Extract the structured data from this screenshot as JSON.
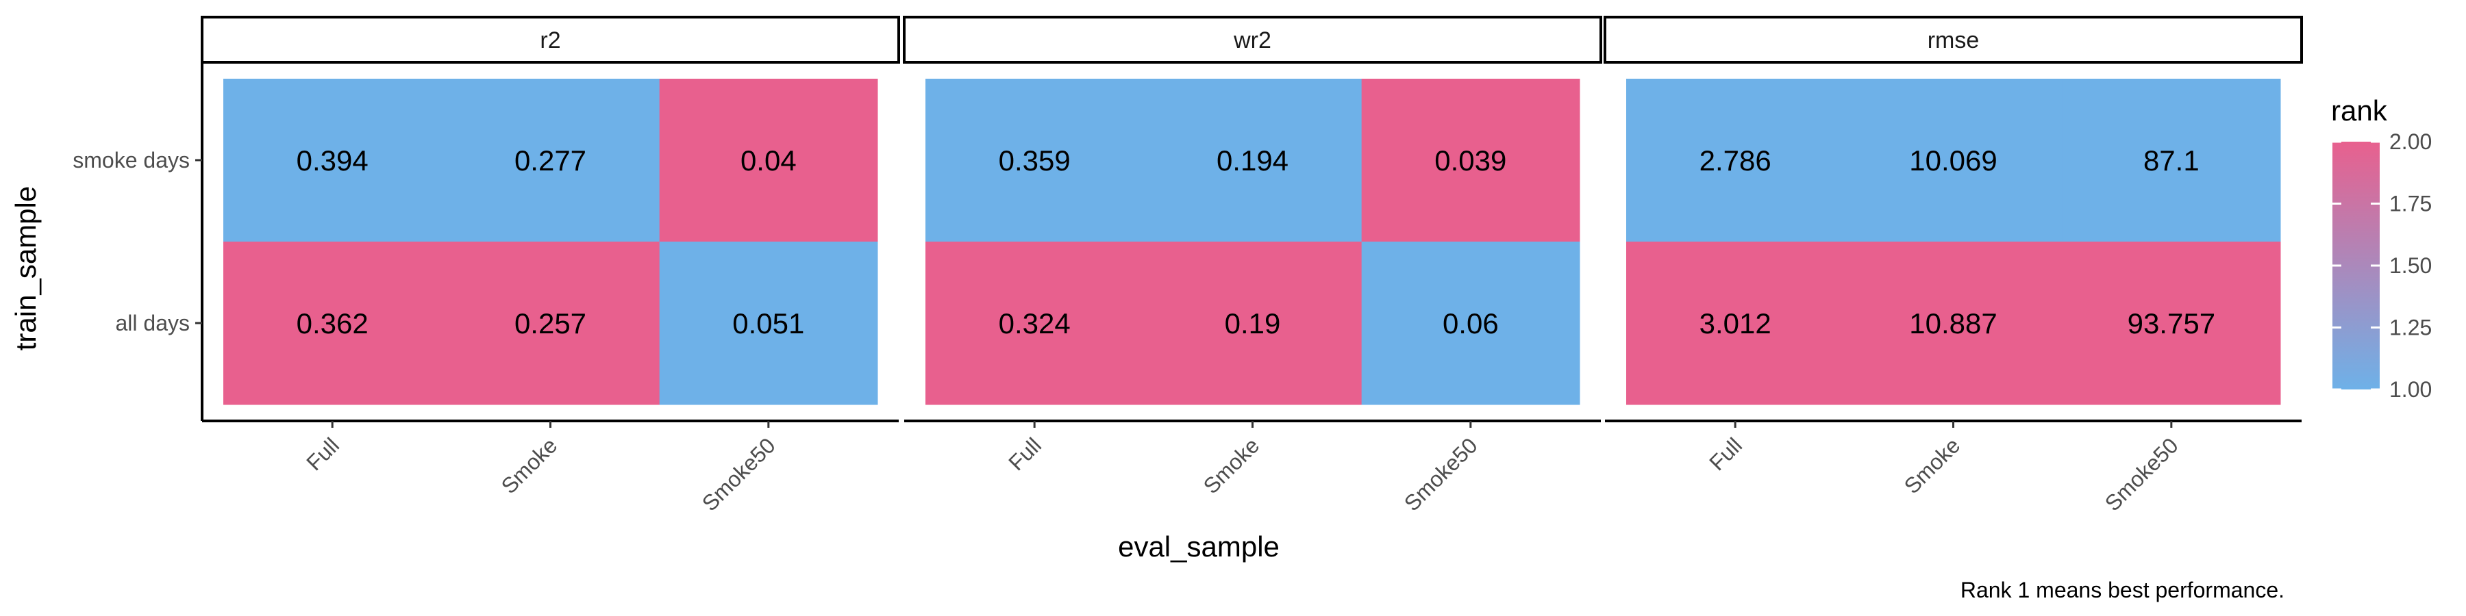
{
  "chart_data": {
    "type": "heatmap",
    "xlabel": "eval_sample",
    "ylabel": "train_sample",
    "caption": "Rank 1 means best performance.",
    "x_categories": [
      "Full",
      "Smoke",
      "Smoke50"
    ],
    "y_categories": [
      "all days",
      "smoke days"
    ],
    "facets": [
      {
        "name": "r2",
        "cells": [
          {
            "x": "Full",
            "y": "smoke days",
            "label": "0.394",
            "rank": 1
          },
          {
            "x": "Smoke",
            "y": "smoke days",
            "label": "0.277",
            "rank": 1
          },
          {
            "x": "Smoke50",
            "y": "smoke days",
            "label": "0.04",
            "rank": 2
          },
          {
            "x": "Full",
            "y": "all days",
            "label": "0.362",
            "rank": 2
          },
          {
            "x": "Smoke",
            "y": "all days",
            "label": "0.257",
            "rank": 2
          },
          {
            "x": "Smoke50",
            "y": "all days",
            "label": "0.051",
            "rank": 1
          }
        ]
      },
      {
        "name": "wr2",
        "cells": [
          {
            "x": "Full",
            "y": "smoke days",
            "label": "0.359",
            "rank": 1
          },
          {
            "x": "Smoke",
            "y": "smoke days",
            "label": "0.194",
            "rank": 1
          },
          {
            "x": "Smoke50",
            "y": "smoke days",
            "label": "0.039",
            "rank": 2
          },
          {
            "x": "Full",
            "y": "all days",
            "label": "0.324",
            "rank": 2
          },
          {
            "x": "Smoke",
            "y": "all days",
            "label": "0.19",
            "rank": 2
          },
          {
            "x": "Smoke50",
            "y": "all days",
            "label": "0.06",
            "rank": 1
          }
        ]
      },
      {
        "name": "rmse",
        "cells": [
          {
            "x": "Full",
            "y": "smoke days",
            "label": "2.786",
            "rank": 1
          },
          {
            "x": "Smoke",
            "y": "smoke days",
            "label": "10.069",
            "rank": 1
          },
          {
            "x": "Smoke50",
            "y": "smoke days",
            "label": "87.1",
            "rank": 1
          },
          {
            "x": "Full",
            "y": "all days",
            "label": "3.012",
            "rank": 2
          },
          {
            "x": "Smoke",
            "y": "all days",
            "label": "10.887",
            "rank": 2
          },
          {
            "x": "Smoke50",
            "y": "all days",
            "label": "93.757",
            "rank": 2
          }
        ]
      }
    ],
    "legend": {
      "title": "rank",
      "ticks": [
        "2.00",
        "1.75",
        "1.50",
        "1.25",
        "1.00"
      ],
      "range": [
        1,
        2
      ],
      "low_color": "#6EB1E8",
      "high_color": "#E8608E",
      "placement": "right"
    },
    "grid": false
  }
}
